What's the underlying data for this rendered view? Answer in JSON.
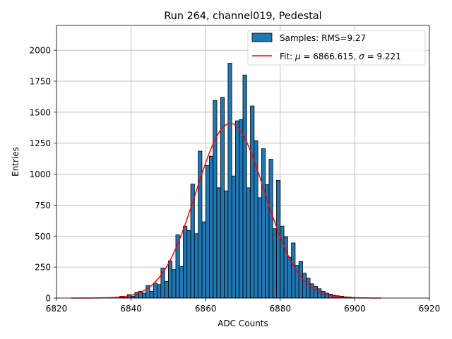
{
  "chart_data": {
    "type": "bar",
    "title": "Run 264, channel019, Pedestal",
    "xlabel": "ADC Counts",
    "ylabel": "Entries",
    "xlim": [
      6820,
      6920
    ],
    "ylim": [
      0,
      2200
    ],
    "xticks": [
      6820,
      6840,
      6860,
      6880,
      6900,
      6920
    ],
    "xtick_labels": [
      "6820",
      "6840",
      "6860",
      "6880",
      "6900",
      "6920"
    ],
    "yticks": [
      0,
      250,
      500,
      750,
      1000,
      1250,
      1500,
      1750,
      2000
    ],
    "ytick_labels": [
      "0",
      "250",
      "500",
      "750",
      "1000",
      "1250",
      "1500",
      "1750",
      "2000"
    ],
    "grid": true,
    "legend_position": "upper right",
    "bar_color": "#1f77b4",
    "bar_edge_color": "#000000",
    "fit_color": "#ff0000",
    "bin_width": 1,
    "series": [
      {
        "name": "Samples: RMS=9.27",
        "kind": "histogram",
        "x": [
          6837,
          6838,
          6839,
          6840,
          6841,
          6842,
          6843,
          6844,
          6845,
          6846,
          6847,
          6848,
          6849,
          6850,
          6851,
          6852,
          6853,
          6854,
          6855,
          6856,
          6857,
          6858,
          6859,
          6860,
          6861,
          6862,
          6863,
          6864,
          6865,
          6866,
          6867,
          6868,
          6869,
          6870,
          6871,
          6872,
          6873,
          6874,
          6875,
          6876,
          6877,
          6878,
          6879,
          6880,
          6881,
          6882,
          6883,
          6884,
          6885,
          6886,
          6887,
          6888,
          6889,
          6890,
          6891,
          6892,
          6893,
          6894,
          6895,
          6896,
          6897,
          6898,
          6899,
          6900,
          6901,
          6902
        ],
        "values": [
          15,
          5,
          28,
          15,
          45,
          55,
          40,
          100,
          55,
          120,
          110,
          240,
          135,
          300,
          230,
          510,
          255,
          580,
          545,
          920,
          520,
          1185,
          615,
          1070,
          1145,
          1595,
          890,
          1620,
          865,
          1895,
          985,
          1430,
          1440,
          1800,
          890,
          1550,
          1270,
          810,
          1205,
          915,
          1120,
          560,
          950,
          580,
          495,
          330,
          445,
          265,
          295,
          200,
          160,
          115,
          95,
          75,
          55,
          40,
          32,
          22,
          18,
          15,
          10,
          8,
          5,
          4,
          3,
          2
        ]
      },
      {
        "name": "Fit: μ = 6866.615, σ = 9.221",
        "name_mu": "μ",
        "name_sigma": "σ",
        "kind": "gaussian-fit",
        "mu": 6866.615,
        "sigma": 9.221,
        "amplitude": 1410,
        "x_range": [
          6824,
          6907
        ]
      }
    ]
  }
}
